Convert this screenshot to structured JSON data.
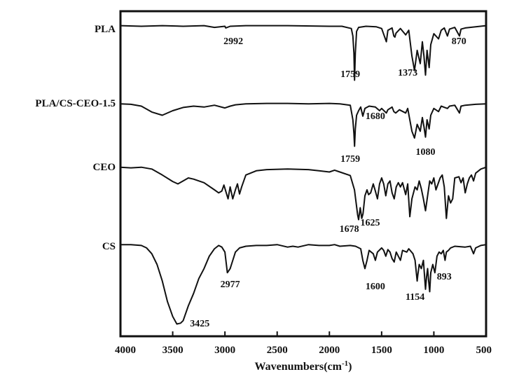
{
  "chart_data": {
    "type": "line",
    "title": "",
    "xlabel": "Wavenumbers(cm",
    "xlabel_sup": "-1",
    "xlabel_close": ")",
    "ylabel": "",
    "xlim": [
      4000,
      500
    ],
    "x_reversed": true,
    "xticks": [
      4000,
      3500,
      3000,
      2500,
      2000,
      1500,
      1000,
      500
    ],
    "xtick_labels": [
      "4000",
      "3500",
      "3000",
      "2500",
      "2000",
      "1500",
      "1000",
      "500"
    ],
    "grid": false,
    "line_color": "#111111",
    "series": [
      {
        "name": "PLA",
        "points": [
          [
            4000,
            0.02
          ],
          [
            3800,
            0.03
          ],
          [
            3600,
            0.02
          ],
          [
            3400,
            0.03
          ],
          [
            3200,
            0.02
          ],
          [
            3100,
            0.05
          ],
          [
            3000,
            0.03
          ],
          [
            2992,
            0.06
          ],
          [
            2950,
            0.03
          ],
          [
            2800,
            0.02
          ],
          [
            2400,
            0.02
          ],
          [
            2000,
            0.03
          ],
          [
            1880,
            0.03
          ],
          [
            1790,
            0.07
          ],
          [
            1775,
            0.2
          ],
          [
            1765,
            0.5
          ],
          [
            1759,
            0.97
          ],
          [
            1752,
            0.5
          ],
          [
            1740,
            0.12
          ],
          [
            1720,
            0.05
          ],
          [
            1650,
            0.03
          ],
          [
            1550,
            0.04
          ],
          [
            1500,
            0.07
          ],
          [
            1455,
            0.3
          ],
          [
            1440,
            0.1
          ],
          [
            1400,
            0.06
          ],
          [
            1383,
            0.2
          ],
          [
            1373,
            0.22
          ],
          [
            1362,
            0.15
          ],
          [
            1320,
            0.07
          ],
          [
            1270,
            0.18
          ],
          [
            1240,
            0.1
          ],
          [
            1210,
            0.55
          ],
          [
            1185,
            0.8
          ],
          [
            1160,
            0.45
          ],
          [
            1130,
            0.68
          ],
          [
            1110,
            0.3
          ],
          [
            1095,
            0.55
          ],
          [
            1080,
            0.88
          ],
          [
            1065,
            0.45
          ],
          [
            1045,
            0.75
          ],
          [
            1030,
            0.35
          ],
          [
            1000,
            0.16
          ],
          [
            955,
            0.25
          ],
          [
            930,
            0.1
          ],
          [
            900,
            0.06
          ],
          [
            870,
            0.2
          ],
          [
            850,
            0.08
          ],
          [
            800,
            0.05
          ],
          [
            755,
            0.2
          ],
          [
            740,
            0.08
          ],
          [
            700,
            0.06
          ],
          [
            600,
            0.04
          ],
          [
            500,
            0.02
          ]
        ]
      },
      {
        "name": "PLA/CS-CEO-1.5",
        "points": [
          [
            4000,
            0.05
          ],
          [
            3900,
            0.06
          ],
          [
            3800,
            0.1
          ],
          [
            3700,
            0.23
          ],
          [
            3600,
            0.3
          ],
          [
            3500,
            0.2
          ],
          [
            3400,
            0.13
          ],
          [
            3300,
            0.1
          ],
          [
            3200,
            0.12
          ],
          [
            3100,
            0.08
          ],
          [
            3000,
            0.14
          ],
          [
            2950,
            0.1
          ],
          [
            2900,
            0.07
          ],
          [
            2800,
            0.05
          ],
          [
            2600,
            0.04
          ],
          [
            2400,
            0.04
          ],
          [
            2200,
            0.05
          ],
          [
            2000,
            0.04
          ],
          [
            1900,
            0.05
          ],
          [
            1800,
            0.08
          ],
          [
            1775,
            0.4
          ],
          [
            1765,
            0.7
          ],
          [
            1759,
            0.98
          ],
          [
            1752,
            0.6
          ],
          [
            1740,
            0.3
          ],
          [
            1720,
            0.2
          ],
          [
            1700,
            0.12
          ],
          [
            1680,
            0.32
          ],
          [
            1660,
            0.15
          ],
          [
            1620,
            0.1
          ],
          [
            1560,
            0.12
          ],
          [
            1520,
            0.2
          ],
          [
            1500,
            0.15
          ],
          [
            1455,
            0.25
          ],
          [
            1440,
            0.18
          ],
          [
            1400,
            0.12
          ],
          [
            1383,
            0.22
          ],
          [
            1365,
            0.25
          ],
          [
            1330,
            0.18
          ],
          [
            1270,
            0.25
          ],
          [
            1250,
            0.15
          ],
          [
            1210,
            0.65
          ],
          [
            1185,
            0.8
          ],
          [
            1160,
            0.5
          ],
          [
            1130,
            0.65
          ],
          [
            1110,
            0.35
          ],
          [
            1095,
            0.55
          ],
          [
            1080,
            0.78
          ],
          [
            1065,
            0.4
          ],
          [
            1045,
            0.6
          ],
          [
            1030,
            0.3
          ],
          [
            1000,
            0.15
          ],
          [
            955,
            0.22
          ],
          [
            930,
            0.1
          ],
          [
            870,
            0.15
          ],
          [
            850,
            0.1
          ],
          [
            800,
            0.08
          ],
          [
            755,
            0.25
          ],
          [
            740,
            0.1
          ],
          [
            700,
            0.08
          ],
          [
            600,
            0.06
          ],
          [
            500,
            0.05
          ]
        ]
      },
      {
        "name": "CEO",
        "points": [
          [
            4000,
            0.02
          ],
          [
            3900,
            0.03
          ],
          [
            3800,
            0.02
          ],
          [
            3700,
            0.05
          ],
          [
            3600,
            0.15
          ],
          [
            3500,
            0.26
          ],
          [
            3450,
            0.3
          ],
          [
            3400,
            0.25
          ],
          [
            3350,
            0.2
          ],
          [
            3300,
            0.22
          ],
          [
            3200,
            0.28
          ],
          [
            3100,
            0.4
          ],
          [
            3060,
            0.45
          ],
          [
            3030,
            0.42
          ],
          [
            3010,
            0.32
          ],
          [
            2970,
            0.55
          ],
          [
            2950,
            0.35
          ],
          [
            2925,
            0.55
          ],
          [
            2900,
            0.4
          ],
          [
            2880,
            0.3
          ],
          [
            2860,
            0.47
          ],
          [
            2840,
            0.35
          ],
          [
            2800,
            0.15
          ],
          [
            2700,
            0.08
          ],
          [
            2600,
            0.06
          ],
          [
            2400,
            0.05
          ],
          [
            2200,
            0.06
          ],
          [
            2100,
            0.08
          ],
          [
            2000,
            0.1
          ],
          [
            1950,
            0.07
          ],
          [
            1900,
            0.1
          ],
          [
            1800,
            0.16
          ],
          [
            1760,
            0.4
          ],
          [
            1740,
            0.68
          ],
          [
            1730,
            0.82
          ],
          [
            1720,
            0.9
          ],
          [
            1705,
            0.7
          ],
          [
            1690,
            0.88
          ],
          [
            1678,
            0.8
          ],
          [
            1660,
            0.5
          ],
          [
            1640,
            0.4
          ],
          [
            1625,
            0.48
          ],
          [
            1605,
            0.45
          ],
          [
            1580,
            0.3
          ],
          [
            1560,
            0.42
          ],
          [
            1540,
            0.55
          ],
          [
            1520,
            0.3
          ],
          [
            1500,
            0.2
          ],
          [
            1480,
            0.3
          ],
          [
            1460,
            0.5
          ],
          [
            1440,
            0.3
          ],
          [
            1420,
            0.25
          ],
          [
            1400,
            0.45
          ],
          [
            1380,
            0.55
          ],
          [
            1360,
            0.35
          ],
          [
            1340,
            0.28
          ],
          [
            1320,
            0.35
          ],
          [
            1300,
            0.28
          ],
          [
            1270,
            0.48
          ],
          [
            1250,
            0.3
          ],
          [
            1230,
            0.85
          ],
          [
            1210,
            0.55
          ],
          [
            1180,
            0.35
          ],
          [
            1160,
            0.4
          ],
          [
            1140,
            0.25
          ],
          [
            1120,
            0.38
          ],
          [
            1100,
            0.55
          ],
          [
            1080,
            0.75
          ],
          [
            1060,
            0.5
          ],
          [
            1040,
            0.25
          ],
          [
            1020,
            0.3
          ],
          [
            1000,
            0.2
          ],
          [
            980,
            0.4
          ],
          [
            960,
            0.3
          ],
          [
            940,
            0.2
          ],
          [
            920,
            0.15
          ],
          [
            900,
            0.35
          ],
          [
            880,
            0.88
          ],
          [
            860,
            0.5
          ],
          [
            840,
            0.62
          ],
          [
            820,
            0.55
          ],
          [
            800,
            0.2
          ],
          [
            760,
            0.18
          ],
          [
            740,
            0.28
          ],
          [
            720,
            0.2
          ],
          [
            700,
            0.45
          ],
          [
            680,
            0.3
          ],
          [
            660,
            0.2
          ],
          [
            640,
            0.15
          ],
          [
            620,
            0.25
          ],
          [
            600,
            0.12
          ],
          [
            550,
            0.05
          ],
          [
            500,
            0.02
          ]
        ]
      },
      {
        "name": "CS",
        "points": [
          [
            4000,
            0.01
          ],
          [
            3900,
            0.01
          ],
          [
            3800,
            0.02
          ],
          [
            3750,
            0.05
          ],
          [
            3700,
            0.12
          ],
          [
            3650,
            0.25
          ],
          [
            3600,
            0.45
          ],
          [
            3550,
            0.7
          ],
          [
            3500,
            0.88
          ],
          [
            3460,
            0.97
          ],
          [
            3425,
            0.96
          ],
          [
            3400,
            0.93
          ],
          [
            3350,
            0.75
          ],
          [
            3300,
            0.6
          ],
          [
            3250,
            0.42
          ],
          [
            3200,
            0.3
          ],
          [
            3150,
            0.15
          ],
          [
            3100,
            0.06
          ],
          [
            3060,
            0.02
          ],
          [
            3030,
            0.04
          ],
          [
            3000,
            0.1
          ],
          [
            2977,
            0.35
          ],
          [
            2950,
            0.3
          ],
          [
            2930,
            0.22
          ],
          [
            2900,
            0.1
          ],
          [
            2860,
            0.05
          ],
          [
            2800,
            0.03
          ],
          [
            2700,
            0.02
          ],
          [
            2600,
            0.02
          ],
          [
            2500,
            0.01
          ],
          [
            2400,
            0.04
          ],
          [
            2350,
            0.03
          ],
          [
            2300,
            0.04
          ],
          [
            2200,
            0.01
          ],
          [
            2100,
            0.02
          ],
          [
            2000,
            0.02
          ],
          [
            1950,
            0.01
          ],
          [
            1900,
            0.03
          ],
          [
            1800,
            0.02
          ],
          [
            1750,
            0.03
          ],
          [
            1700,
            0.06
          ],
          [
            1680,
            0.2
          ],
          [
            1660,
            0.3
          ],
          [
            1640,
            0.2
          ],
          [
            1620,
            0.08
          ],
          [
            1600,
            0.1
          ],
          [
            1580,
            0.12
          ],
          [
            1560,
            0.2
          ],
          [
            1540,
            0.1
          ],
          [
            1500,
            0.05
          ],
          [
            1480,
            0.08
          ],
          [
            1460,
            0.15
          ],
          [
            1440,
            0.07
          ],
          [
            1420,
            0.1
          ],
          [
            1400,
            0.18
          ],
          [
            1380,
            0.22
          ],
          [
            1360,
            0.1
          ],
          [
            1340,
            0.15
          ],
          [
            1320,
            0.2
          ],
          [
            1300,
            0.08
          ],
          [
            1260,
            0.1
          ],
          [
            1240,
            0.06
          ],
          [
            1200,
            0.12
          ],
          [
            1180,
            0.2
          ],
          [
            1160,
            0.45
          ],
          [
            1154,
            0.38
          ],
          [
            1140,
            0.25
          ],
          [
            1120,
            0.3
          ],
          [
            1100,
            0.2
          ],
          [
            1080,
            0.55
          ],
          [
            1070,
            0.4
          ],
          [
            1060,
            0.3
          ],
          [
            1050,
            0.45
          ],
          [
            1040,
            0.58
          ],
          [
            1030,
            0.35
          ],
          [
            1010,
            0.25
          ],
          [
            990,
            0.35
          ],
          [
            970,
            0.15
          ],
          [
            950,
            0.1
          ],
          [
            930,
            0.12
          ],
          [
            910,
            0.08
          ],
          [
            893,
            0.2
          ],
          [
            880,
            0.1
          ],
          [
            860,
            0.08
          ],
          [
            840,
            0.05
          ],
          [
            800,
            0.03
          ],
          [
            700,
            0.04
          ],
          [
            650,
            0.03
          ],
          [
            620,
            0.12
          ],
          [
            600,
            0.05
          ],
          [
            550,
            0.02
          ],
          [
            500,
            0.01
          ]
        ]
      }
    ],
    "annotations": [
      {
        "text": "2992",
        "x": 2920,
        "series": 0
      },
      {
        "text": "1759",
        "x": 1800,
        "series": 0
      },
      {
        "text": "1373",
        "x": 1250,
        "series": 0
      },
      {
        "text": "870",
        "x": 760,
        "series": 0
      },
      {
        "text": "1680",
        "x": 1560,
        "series": 1
      },
      {
        "text": "1759",
        "x": 1800,
        "series": 1
      },
      {
        "text": "1080",
        "x": 1080,
        "series": 1
      },
      {
        "text": "1678",
        "x": 1810,
        "series": 2
      },
      {
        "text": "1625",
        "x": 1610,
        "series": 2
      },
      {
        "text": "2977",
        "x": 2950,
        "series": 3
      },
      {
        "text": "3425",
        "x": 3240,
        "series": 3
      },
      {
        "text": "1600",
        "x": 1560,
        "series": 3
      },
      {
        "text": "1154",
        "x": 1180,
        "series": 3
      },
      {
        "text": "893",
        "x": 900,
        "series": 3
      }
    ]
  }
}
